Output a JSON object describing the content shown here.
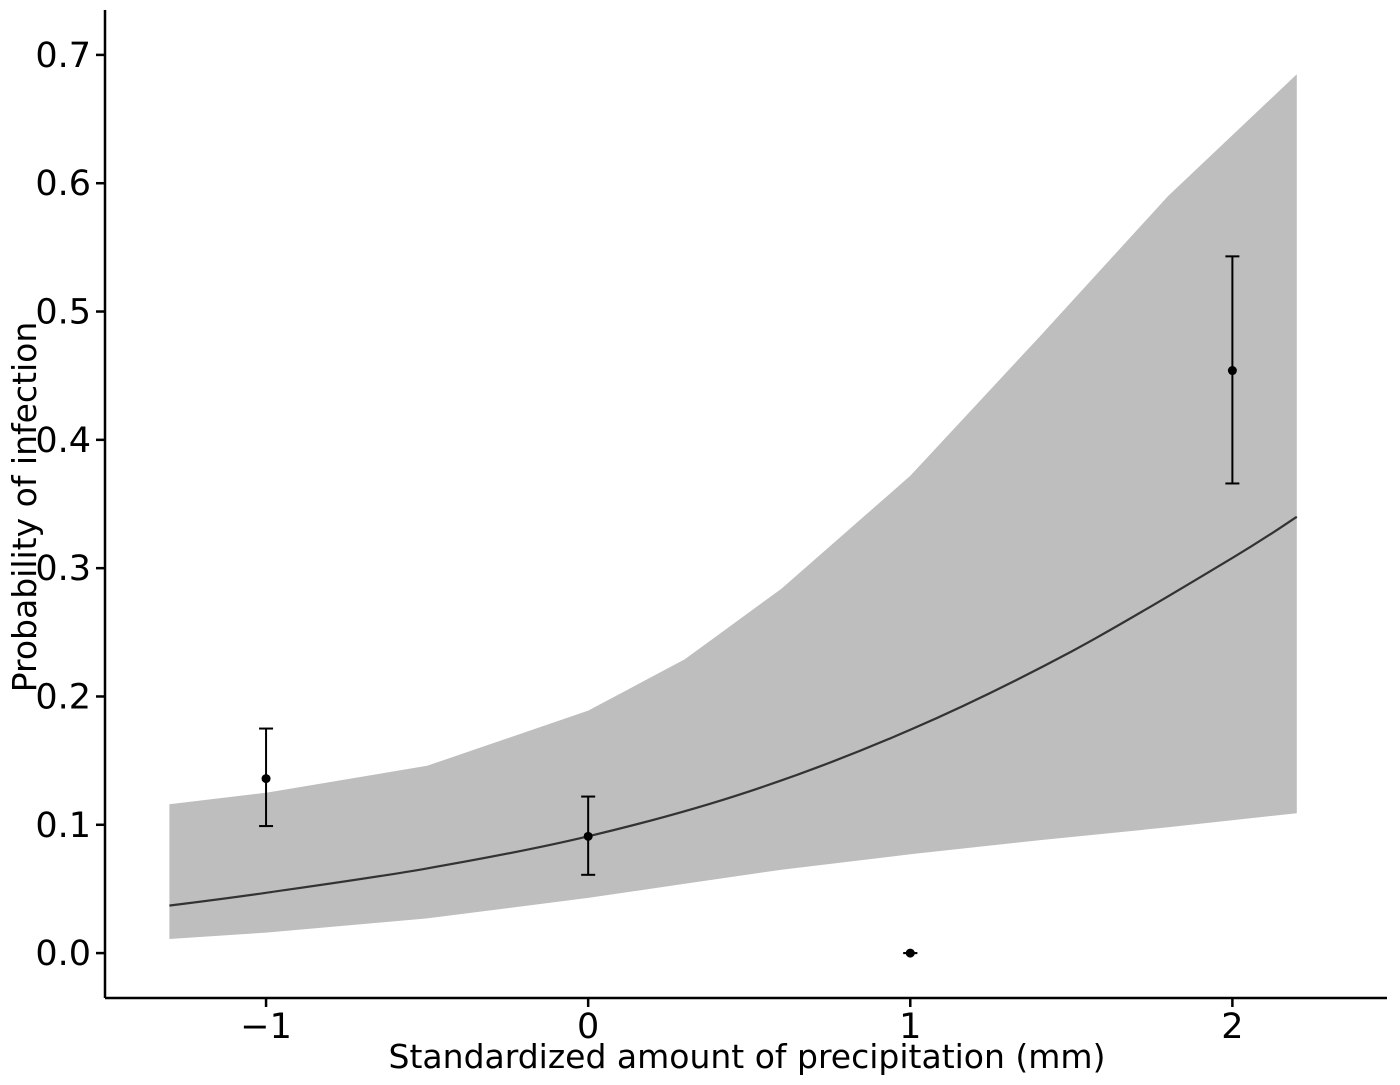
{
  "chart_data": {
    "type": "line",
    "title": "",
    "xlabel": "Standardized amount of precipitation (mm)",
    "ylabel": "Probability of infection",
    "xlim": [
      -1.5,
      2.48
    ],
    "ylim": [
      -0.035,
      0.735
    ],
    "grid": false,
    "legend": "none",
    "x_ticks": [
      -1,
      0,
      1,
      2
    ],
    "x_tick_labels": [
      "−1",
      "0",
      "1",
      "2"
    ],
    "y_ticks": [
      0.0,
      0.1,
      0.2,
      0.3,
      0.4,
      0.5,
      0.6,
      0.7
    ],
    "y_tick_labels": [
      "0.0",
      "0.1",
      "0.2",
      "0.3",
      "0.4",
      "0.5",
      "0.6",
      "0.7"
    ],
    "colors": {
      "band": "#bebebe",
      "line": "#333333",
      "points": "#000000",
      "axis": "#000000"
    },
    "fit_line": {
      "x": [
        -1.3,
        -1.0,
        -0.5,
        0.0,
        0.5,
        1.0,
        1.5,
        2.0,
        2.2
      ],
      "y": [
        0.037,
        0.047,
        0.066,
        0.091,
        0.126,
        0.174,
        0.235,
        0.308,
        0.34
      ]
    },
    "confidence_band": {
      "x": [
        -1.3,
        -1.0,
        -0.5,
        0.0,
        0.3,
        0.6,
        1.0,
        1.4,
        1.8,
        2.2
      ],
      "lower": [
        0.011,
        0.016,
        0.027,
        0.043,
        0.054,
        0.065,
        0.077,
        0.088,
        0.098,
        0.109
      ],
      "upper": [
        0.116,
        0.125,
        0.146,
        0.189,
        0.229,
        0.284,
        0.372,
        0.48,
        0.59,
        0.685
      ]
    },
    "points": {
      "x": [
        -1,
        0,
        1,
        2
      ],
      "y": [
        0.136,
        0.091,
        0.0,
        0.454
      ],
      "lower": [
        0.099,
        0.061,
        0.0,
        0.366
      ],
      "upper": [
        0.175,
        0.122,
        0.0,
        0.543
      ]
    }
  }
}
